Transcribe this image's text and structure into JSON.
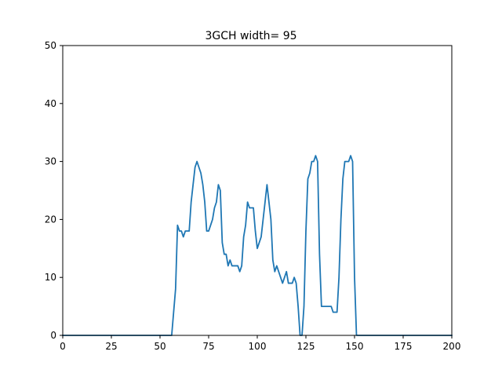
{
  "chart_data": {
    "type": "line",
    "title": "3GCH width= 95",
    "xlabel": "",
    "ylabel": "",
    "xlim": [
      0,
      200
    ],
    "ylim": [
      0,
      50
    ],
    "xticks": [
      0,
      25,
      50,
      75,
      100,
      125,
      150,
      175,
      200
    ],
    "yticks": [
      0,
      10,
      20,
      30,
      40,
      50
    ],
    "grid": false,
    "line_color": "#1f77b4",
    "series": [
      {
        "x": [
          0,
          56,
          57,
          58,
          59,
          60,
          61,
          62,
          63,
          64,
          65,
          66,
          67,
          68,
          69,
          70,
          71,
          72,
          73,
          74,
          75,
          76,
          77,
          78,
          79,
          80,
          81,
          82,
          83,
          84,
          85,
          86,
          87,
          88,
          89,
          90,
          91,
          92,
          93,
          94,
          95,
          96,
          97,
          98,
          99,
          100,
          101,
          102,
          103,
          104,
          105,
          106,
          107,
          108,
          109,
          110,
          111,
          112,
          113,
          114,
          115,
          116,
          117,
          118,
          119,
          120,
          121,
          122,
          123,
          124,
          125,
          126,
          127,
          128,
          129,
          130,
          131,
          132,
          133,
          134,
          135,
          136,
          137,
          138,
          139,
          140,
          141,
          142,
          143,
          144,
          145,
          146,
          147,
          148,
          149,
          150,
          151,
          152,
          200
        ],
        "y": [
          0,
          0,
          4,
          8,
          19,
          18,
          18,
          17,
          18,
          18,
          18,
          23,
          26,
          29,
          30,
          29,
          28,
          26,
          23,
          18,
          18,
          19,
          20,
          22,
          23,
          26,
          25,
          16,
          14,
          14,
          12,
          13,
          12,
          12,
          12,
          12,
          11,
          12,
          17,
          19,
          23,
          22,
          22,
          22,
          18,
          15,
          16,
          17,
          20,
          23,
          26,
          23,
          20,
          13,
          11,
          12,
          11,
          10,
          9,
          10,
          11,
          9,
          9,
          9,
          10,
          9,
          5,
          0,
          0,
          5,
          18,
          27,
          28,
          30,
          30,
          31,
          30,
          14,
          5,
          5,
          5,
          5,
          5,
          5,
          4,
          4,
          4,
          10,
          20,
          27,
          30,
          30,
          30,
          31,
          30,
          10,
          0,
          0,
          0
        ]
      }
    ]
  }
}
